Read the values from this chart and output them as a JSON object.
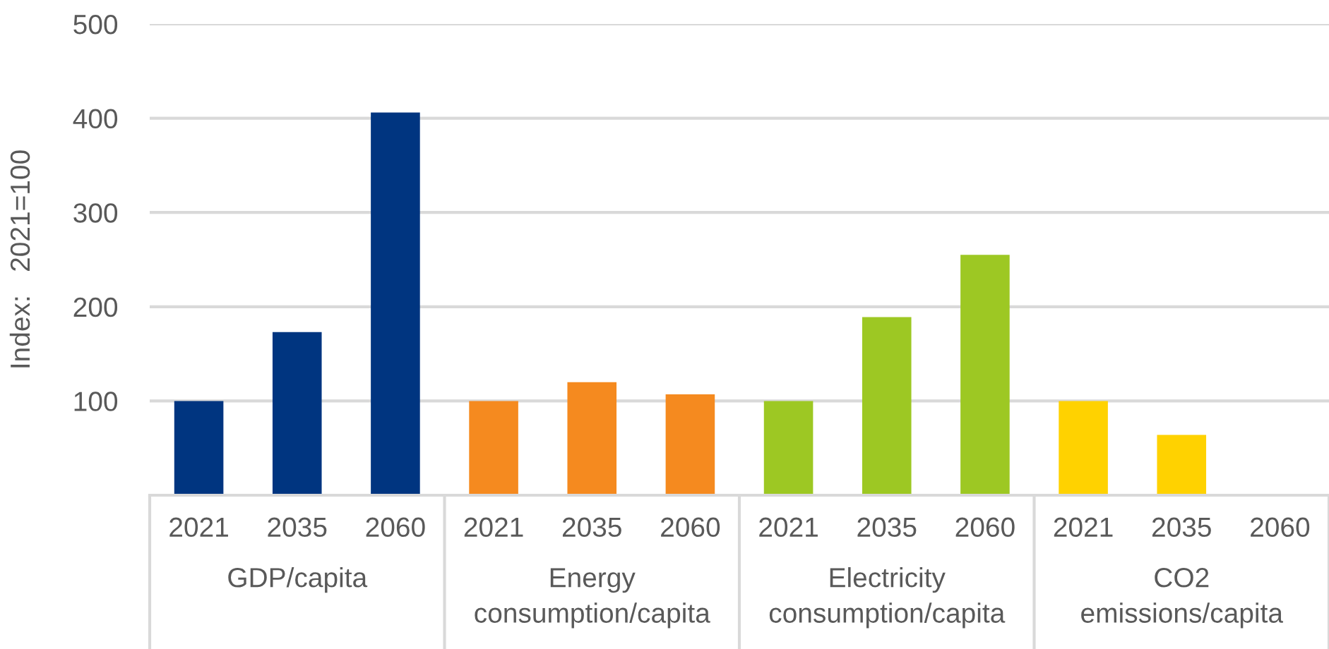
{
  "chart_data": {
    "type": "bar",
    "ylabel": "Index:   2021=100",
    "stacked": true,
    "grid": "y",
    "categories": [
      "2021",
      "2035",
      "2060",
      "2021",
      "2035",
      "2060",
      "2021",
      "2035",
      "2060",
      "2021",
      "2035",
      "2060"
    ],
    "series": [
      {
        "name": "GDP/capita",
        "color": "#003580",
        "values": [
          100,
          173,
          406,
          null,
          null,
          null,
          null,
          null,
          null,
          null,
          null,
          null
        ]
      },
      {
        "name": "Energy\nconsumption/capita",
        "color": "#f58a1f",
        "values": [
          null,
          null,
          null,
          100,
          120,
          107,
          null,
          null,
          null,
          null,
          null,
          null
        ]
      },
      {
        "name": "Electricity\nconsumption/capita",
        "color": "#9dc823",
        "values": [
          null,
          null,
          null,
          null,
          null,
          null,
          100,
          189,
          255,
          null,
          null,
          null
        ]
      },
      {
        "name": "CO2\nemissions/capita",
        "color": "#ffd200",
        "values": [
          null,
          null,
          null,
          null,
          null,
          null,
          null,
          null,
          null,
          100,
          64,
          0
        ]
      }
    ],
    "ylim": [
      0,
      500
    ],
    "yticks": [
      100,
      200,
      300,
      400,
      500
    ]
  }
}
